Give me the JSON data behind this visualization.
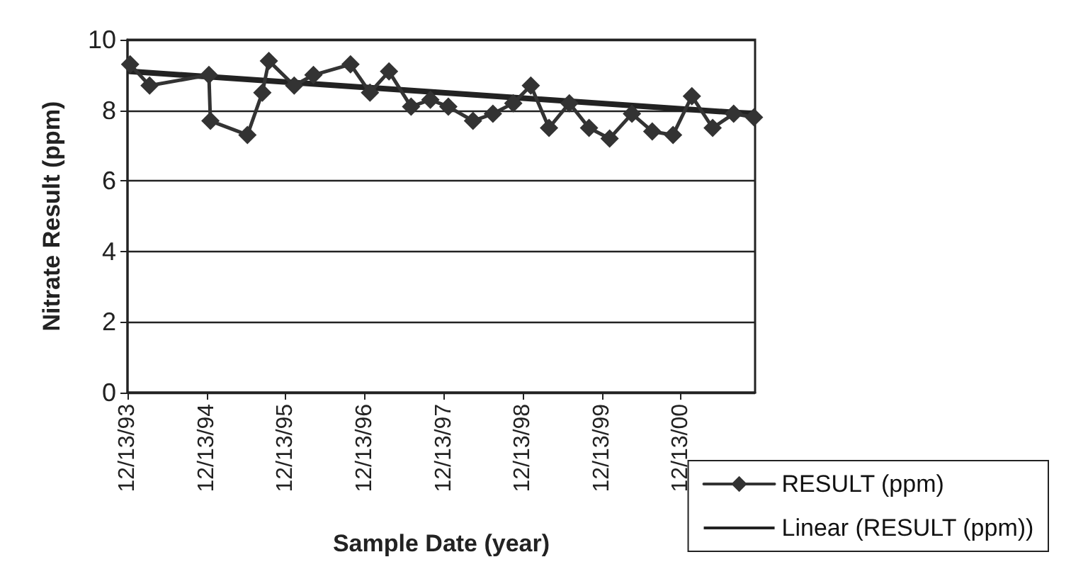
{
  "chart_data": {
    "type": "line",
    "xlabel": "Sample Date (year)",
    "ylabel": "Nitrate Result (ppm)",
    "series": [
      {
        "name": "RESULT (ppm)",
        "color": "#333333",
        "marker": "diamond",
        "x": [
          "1993-12-25",
          "1994-03-25",
          "1994-12-24",
          "1994-12-31",
          "1995-06-20",
          "1995-08-28",
          "1995-09-27",
          "1996-01-22",
          "1996-04-20",
          "1996-10-08",
          "1997-01-06",
          "1997-04-04",
          "1997-07-15",
          "1997-10-12",
          "1998-01-03",
          "1998-04-27",
          "1998-07-28",
          "1998-10-30",
          "1999-01-19",
          "1999-04-13",
          "1999-07-16",
          "1999-10-15",
          "2000-01-18",
          "2000-04-30",
          "2000-08-02",
          "2000-11-06",
          "2001-02-01",
          "2001-05-08",
          "2001-08-13",
          "2001-11-15"
        ],
        "values": [
          9.3,
          8.7,
          9.0,
          7.7,
          7.3,
          8.5,
          9.4,
          8.7,
          9.0,
          9.3,
          8.5,
          9.1,
          8.1,
          8.3,
          8.1,
          7.7,
          7.9,
          8.2,
          8.7,
          7.5,
          8.2,
          7.5,
          7.2,
          7.9,
          7.4,
          7.3,
          8.4,
          7.5,
          7.9,
          7.8
        ]
      },
      {
        "name": "Linear (RESULT (ppm))",
        "color": "#222222",
        "marker": "none",
        "x": [
          "1993-12-25",
          "2001-11-15"
        ],
        "values": [
          9.1,
          7.9
        ]
      }
    ],
    "xlim": [
      "1993-12-13",
      "2001-11-20"
    ],
    "xticks": [
      {
        "value": "1993-12-13",
        "label": "12/13/93"
      },
      {
        "value": "1994-12-13",
        "label": "12/13/94"
      },
      {
        "value": "1995-12-13",
        "label": "12/13/95"
      },
      {
        "value": "1996-12-13",
        "label": "12/13/96"
      },
      {
        "value": "1997-12-13",
        "label": "12/13/97"
      },
      {
        "value": "1998-12-13",
        "label": "12/13/98"
      },
      {
        "value": "1999-12-13",
        "label": "12/13/99"
      },
      {
        "value": "2000-12-13",
        "label": "12/13/00"
      }
    ],
    "ylim": [
      0,
      10
    ],
    "yticks": [
      0,
      2,
      4,
      6,
      8,
      10
    ],
    "grid": "y",
    "legend": "bottom right"
  }
}
